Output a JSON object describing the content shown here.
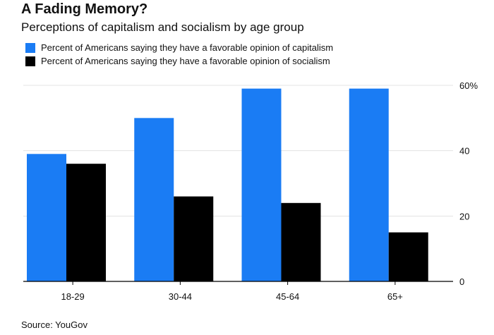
{
  "title": "A Fading Memory?",
  "subtitle": "Perceptions of capitalism and socialism by age group",
  "source": "Source: YouGov",
  "colors": {
    "capitalism": "#1a7cf4",
    "socialism": "#000000",
    "grid": "#e3e3e3",
    "axis": "#000000"
  },
  "chart_data": {
    "type": "bar",
    "categories": [
      "18-29",
      "30-44",
      "45-64",
      "65+"
    ],
    "series": [
      {
        "name": "Percent of Americans saying they have a favorable opinion of capitalism",
        "values": [
          39,
          50,
          59,
          59
        ]
      },
      {
        "name": "Percent of Americans saying they have a favorable opinion of socialism",
        "values": [
          36,
          26,
          24,
          15
        ]
      }
    ],
    "ylim": [
      0,
      60
    ],
    "yticks": [
      0,
      20,
      40,
      60
    ],
    "ytick_labels": [
      "0",
      "20",
      "40",
      "60%"
    ],
    "xlabel": "",
    "ylabel": "",
    "grid": true,
    "legend_position": "top-left",
    "axis_position": "right"
  }
}
